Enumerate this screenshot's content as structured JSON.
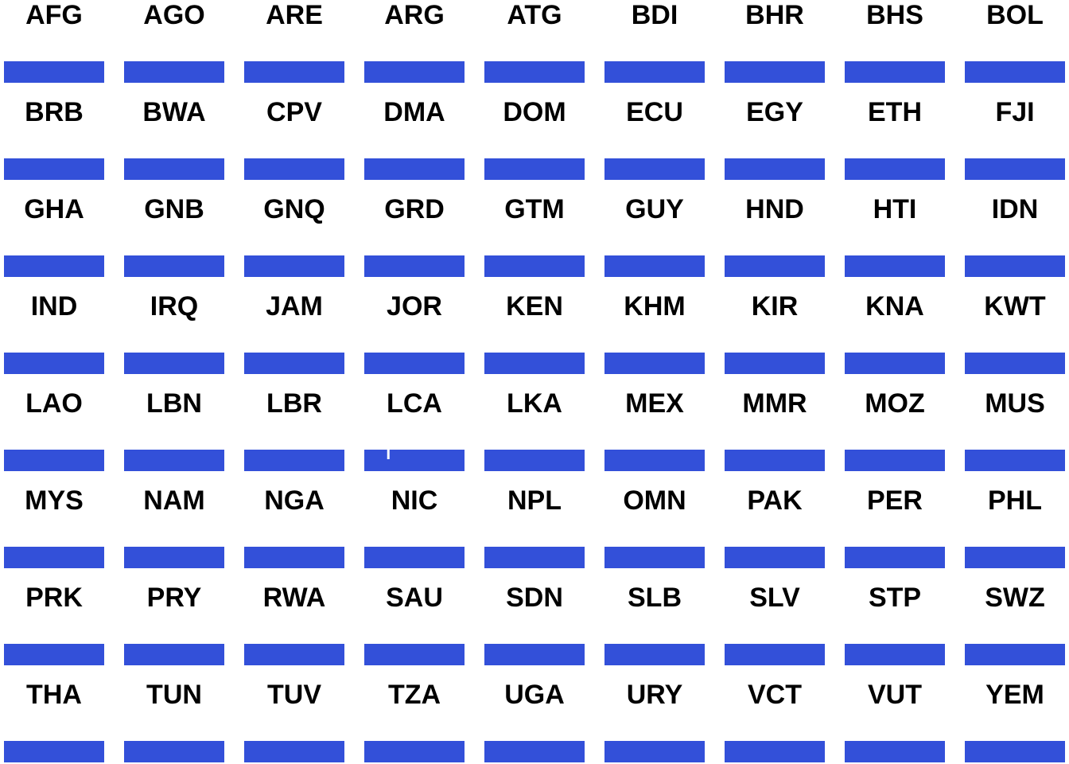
{
  "chart_data": {
    "type": "bar",
    "layout": "small-multiples",
    "bar_color": "#3350d9",
    "gap_color": "#ffffff",
    "panels": [
      {
        "label": "AFG",
        "gaps": []
      },
      {
        "label": "AGO",
        "gaps": []
      },
      {
        "label": "ARE",
        "gaps": []
      },
      {
        "label": "ARG",
        "gaps": []
      },
      {
        "label": "ATG",
        "gaps": []
      },
      {
        "label": "BDI",
        "gaps": []
      },
      {
        "label": "BHR",
        "gaps": []
      },
      {
        "label": "BHS",
        "gaps": []
      },
      {
        "label": "BOL",
        "gaps": []
      },
      {
        "label": "BRB",
        "gaps": []
      },
      {
        "label": "BWA",
        "gaps": []
      },
      {
        "label": "CPV",
        "gaps": []
      },
      {
        "label": "DMA",
        "gaps": []
      },
      {
        "label": "DOM",
        "gaps": []
      },
      {
        "label": "ECU",
        "gaps": []
      },
      {
        "label": "EGY",
        "gaps": []
      },
      {
        "label": "ETH",
        "gaps": []
      },
      {
        "label": "FJI",
        "gaps": []
      },
      {
        "label": "GHA",
        "gaps": []
      },
      {
        "label": "GNB",
        "gaps": []
      },
      {
        "label": "GNQ",
        "gaps": []
      },
      {
        "label": "GRD",
        "gaps": []
      },
      {
        "label": "GTM",
        "gaps": []
      },
      {
        "label": "GUY",
        "gaps": []
      },
      {
        "label": "HND",
        "gaps": []
      },
      {
        "label": "HTI",
        "gaps": []
      },
      {
        "label": "IDN",
        "gaps": []
      },
      {
        "label": "IND",
        "gaps": []
      },
      {
        "label": "IRQ",
        "gaps": []
      },
      {
        "label": "JAM",
        "gaps": []
      },
      {
        "label": "JOR",
        "gaps": []
      },
      {
        "label": "KEN",
        "gaps": []
      },
      {
        "label": "KHM",
        "gaps": []
      },
      {
        "label": "KIR",
        "gaps": []
      },
      {
        "label": "KNA",
        "gaps": []
      },
      {
        "label": "KWT",
        "gaps": []
      },
      {
        "label": "LAO",
        "gaps": []
      },
      {
        "label": "LBN",
        "gaps": []
      },
      {
        "label": "LBR",
        "gaps": []
      },
      {
        "label": "LCA",
        "gaps": [
          0.24
        ]
      },
      {
        "label": "LKA",
        "gaps": []
      },
      {
        "label": "MEX",
        "gaps": []
      },
      {
        "label": "MMR",
        "gaps": []
      },
      {
        "label": "MOZ",
        "gaps": []
      },
      {
        "label": "MUS",
        "gaps": []
      },
      {
        "label": "MYS",
        "gaps": []
      },
      {
        "label": "NAM",
        "gaps": []
      },
      {
        "label": "NGA",
        "gaps": []
      },
      {
        "label": "NIC",
        "gaps": []
      },
      {
        "label": "NPL",
        "gaps": []
      },
      {
        "label": "OMN",
        "gaps": []
      },
      {
        "label": "PAK",
        "gaps": []
      },
      {
        "label": "PER",
        "gaps": []
      },
      {
        "label": "PHL",
        "gaps": []
      },
      {
        "label": "PRK",
        "gaps": []
      },
      {
        "label": "PRY",
        "gaps": []
      },
      {
        "label": "RWA",
        "gaps": []
      },
      {
        "label": "SAU",
        "gaps": []
      },
      {
        "label": "SDN",
        "gaps": []
      },
      {
        "label": "SLB",
        "gaps": []
      },
      {
        "label": "SLV",
        "gaps": []
      },
      {
        "label": "STP",
        "gaps": []
      },
      {
        "label": "SWZ",
        "gaps": []
      },
      {
        "label": "THA",
        "gaps": []
      },
      {
        "label": "TUN",
        "gaps": []
      },
      {
        "label": "TUV",
        "gaps": []
      },
      {
        "label": "TZA",
        "gaps": []
      },
      {
        "label": "UGA",
        "gaps": []
      },
      {
        "label": "URY",
        "gaps": []
      },
      {
        "label": "VCT",
        "gaps": []
      },
      {
        "label": "VUT",
        "gaps": []
      },
      {
        "label": "YEM",
        "gaps": []
      }
    ]
  }
}
